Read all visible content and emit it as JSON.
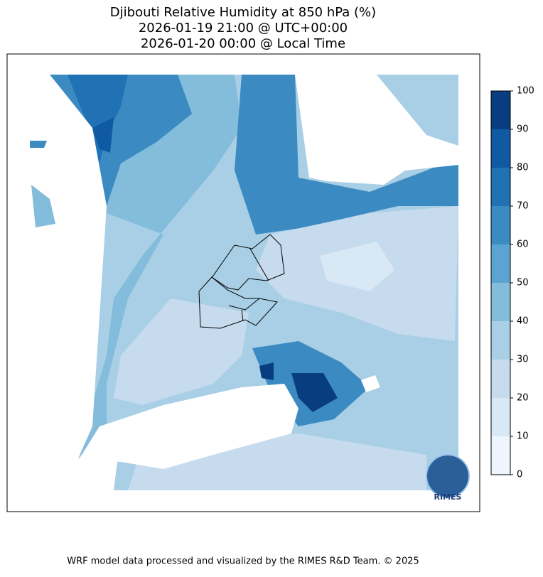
{
  "header": {
    "title": "Djibouti Relative Humidity at 850 hPa (%)",
    "utc_time": "2026-01-19 21:00 @ UTC+00:00",
    "local_time": "2026-01-20 00:00 @ Local Time"
  },
  "colorbar": {
    "ticks": [
      0,
      10,
      20,
      30,
      40,
      50,
      60,
      70,
      80,
      90,
      100
    ],
    "colors": [
      "#eef5fc",
      "#d9e8f5",
      "#c7dbef",
      "#a8cfe5",
      "#84bcdb",
      "#5ba3d0",
      "#3b8bc2",
      "#2171b5",
      "#0f5aa3",
      "#083d7f"
    ]
  },
  "logo": {
    "text": "RIMES"
  },
  "footer": {
    "text": "WRF model data processed and visualized by the RIMES R&D Team. © 2025"
  }
}
